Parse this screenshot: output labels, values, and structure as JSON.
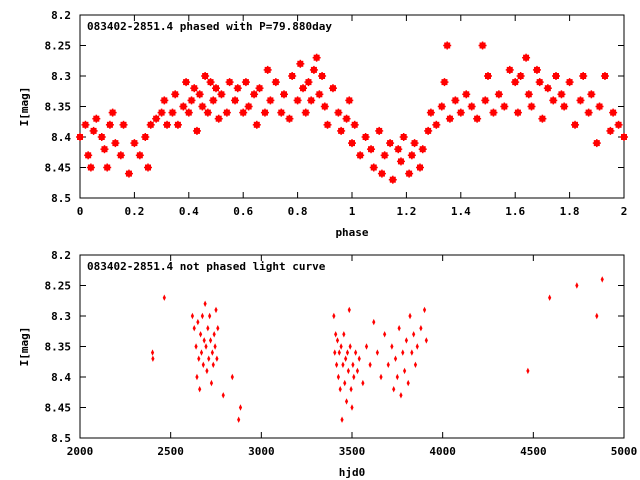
{
  "chart_data": [
    {
      "type": "scatter",
      "title": "083402-2851.4 phased with P=79.880day",
      "xlabel": "phase",
      "ylabel": "I[mag]",
      "xlim": [
        0,
        2
      ],
      "ylim": [
        8.2,
        8.5
      ],
      "y_inverted": true,
      "xticks": [
        0,
        0.2,
        0.4,
        0.6,
        0.8,
        1,
        1.2,
        1.4,
        1.6,
        1.8,
        2
      ],
      "xtick_labels": [
        "0",
        "0.2",
        "0.4",
        "0.6",
        "0.8",
        "1",
        "1.2",
        "1.4",
        "1.6",
        "1.8",
        "2"
      ],
      "yticks": [
        8.2,
        8.25,
        8.3,
        8.35,
        8.4,
        8.45,
        8.5
      ],
      "ytick_labels": [
        "8.2",
        "8.25",
        "8.3",
        "8.35",
        "8.4",
        "8.45",
        "8.5"
      ],
      "grid": false,
      "marker_color": "#ff0000",
      "series": [
        {
          "x": [
            0.0,
            0.02,
            0.03,
            0.04,
            0.05,
            0.06,
            0.08,
            0.09,
            0.1,
            0.11,
            0.12,
            0.13,
            0.15,
            0.16,
            0.18,
            0.2,
            0.22,
            0.24,
            0.25,
            0.26,
            0.28,
            0.3,
            0.31,
            0.32,
            0.34,
            0.35,
            0.36,
            0.38,
            0.39,
            0.4,
            0.41,
            0.42,
            0.43,
            0.44,
            0.45,
            0.46,
            0.47,
            0.48,
            0.49,
            0.5,
            0.51,
            0.52,
            0.54,
            0.55,
            0.57,
            0.58,
            0.6,
            0.61,
            0.62,
            0.64,
            0.65,
            0.66,
            0.68,
            0.69,
            0.7,
            0.72,
            0.74,
            0.75,
            0.77,
            0.78,
            0.8,
            0.81,
            0.82,
            0.83,
            0.84,
            0.85,
            0.86,
            0.87,
            0.88,
            0.89,
            0.9,
            0.91,
            0.93,
            0.95,
            0.96,
            0.98,
            0.99,
            1.0,
            1.01,
            1.03,
            1.05,
            1.07,
            1.08,
            1.1,
            1.11,
            1.12,
            1.14,
            1.15,
            1.17,
            1.18,
            1.19,
            1.21,
            1.22,
            1.23,
            1.25,
            1.26,
            1.28,
            1.29,
            1.31,
            1.33,
            1.34,
            1.35,
            1.36,
            1.38,
            1.4,
            1.42,
            1.44,
            1.46,
            1.48,
            1.49,
            1.5,
            1.52,
            1.54,
            1.56,
            1.58,
            1.6,
            1.61,
            1.62,
            1.64,
            1.65,
            1.66,
            1.68,
            1.69,
            1.7,
            1.72,
            1.74,
            1.75,
            1.77,
            1.78,
            1.8,
            1.82,
            1.84,
            1.85,
            1.87,
            1.88,
            1.9,
            1.91,
            1.93,
            1.95,
            1.96,
            1.98,
            2.0
          ],
          "y": [
            8.4,
            8.38,
            8.43,
            8.45,
            8.39,
            8.37,
            8.4,
            8.42,
            8.45,
            8.38,
            8.36,
            8.41,
            8.43,
            8.38,
            8.46,
            8.41,
            8.43,
            8.4,
            8.45,
            8.38,
            8.37,
            8.36,
            8.34,
            8.38,
            8.36,
            8.33,
            8.38,
            8.35,
            8.31,
            8.36,
            8.34,
            8.32,
            8.39,
            8.33,
            8.35,
            8.3,
            8.36,
            8.31,
            8.34,
            8.32,
            8.37,
            8.33,
            8.36,
            8.31,
            8.34,
            8.32,
            8.36,
            8.31,
            8.35,
            8.33,
            8.38,
            8.32,
            8.36,
            8.29,
            8.34,
            8.31,
            8.36,
            8.33,
            8.37,
            8.3,
            8.34,
            8.28,
            8.32,
            8.36,
            8.31,
            8.34,
            8.29,
            8.27,
            8.33,
            8.3,
            8.35,
            8.38,
            8.32,
            8.36,
            8.39,
            8.37,
            8.34,
            8.41,
            8.38,
            8.43,
            8.4,
            8.42,
            8.45,
            8.39,
            8.46,
            8.43,
            8.41,
            8.47,
            8.42,
            8.44,
            8.4,
            8.46,
            8.43,
            8.41,
            8.45,
            8.42,
            8.39,
            8.36,
            8.38,
            8.35,
            8.31,
            8.25,
            8.37,
            8.34,
            8.36,
            8.33,
            8.35,
            8.37,
            8.25,
            8.34,
            8.3,
            8.36,
            8.33,
            8.35,
            8.29,
            8.31,
            8.36,
            8.3,
            8.27,
            8.33,
            8.35,
            8.29,
            8.31,
            8.37,
            8.32,
            8.34,
            8.3,
            8.33,
            8.35,
            8.31,
            8.38,
            8.34,
            8.3,
            8.36,
            8.33,
            8.41,
            8.35,
            8.3,
            8.39,
            8.36,
            8.38,
            8.4
          ]
        }
      ]
    },
    {
      "type": "scatter",
      "title": "083402-2851.4 not phased light curve",
      "xlabel": "hjd0",
      "ylabel": "I[mag]",
      "xlim": [
        2000,
        5000
      ],
      "ylim": [
        8.2,
        8.5
      ],
      "y_inverted": true,
      "xticks": [
        2000,
        2500,
        3000,
        3500,
        4000,
        4500,
        5000
      ],
      "xtick_labels": [
        "2000",
        "2500",
        "3000",
        "3500",
        "4000",
        "4500",
        "5000"
      ],
      "yticks": [
        8.2,
        8.25,
        8.3,
        8.35,
        8.4,
        8.45,
        8.5
      ],
      "ytick_labels": [
        "8.2",
        "8.25",
        "8.3",
        "8.35",
        "8.4",
        "8.45",
        "8.5"
      ],
      "grid": false,
      "marker_color": "#ff0000",
      "series": [
        {
          "x": [
            2400,
            2402,
            2465,
            2620,
            2630,
            2640,
            2645,
            2650,
            2655,
            2660,
            2665,
            2670,
            2675,
            2680,
            2685,
            2690,
            2695,
            2700,
            2705,
            2710,
            2715,
            2720,
            2725,
            2730,
            2735,
            2740,
            2745,
            2750,
            2755,
            2760,
            2790,
            2840,
            2875,
            2885,
            3400,
            3405,
            3410,
            3415,
            3420,
            3425,
            3430,
            3435,
            3440,
            3445,
            3450,
            3455,
            3460,
            3465,
            3470,
            3475,
            3480,
            3485,
            3490,
            3495,
            3500,
            3505,
            3510,
            3520,
            3530,
            3540,
            3560,
            3580,
            3600,
            3620,
            3640,
            3660,
            3680,
            3700,
            3720,
            3730,
            3740,
            3750,
            3760,
            3770,
            3780,
            3790,
            3800,
            3810,
            3820,
            3830,
            3840,
            3850,
            3860,
            3880,
            3900,
            3910,
            4470,
            4590,
            4740,
            4850,
            4880
          ],
          "y": [
            8.36,
            8.37,
            8.27,
            8.3,
            8.32,
            8.35,
            8.4,
            8.31,
            8.37,
            8.42,
            8.33,
            8.36,
            8.3,
            8.38,
            8.34,
            8.28,
            8.35,
            8.39,
            8.32,
            8.37,
            8.3,
            8.34,
            8.41,
            8.36,
            8.38,
            8.33,
            8.35,
            8.29,
            8.37,
            8.32,
            8.43,
            8.4,
            8.47,
            8.45,
            8.3,
            8.36,
            8.33,
            8.38,
            8.34,
            8.4,
            8.36,
            8.42,
            8.35,
            8.47,
            8.38,
            8.33,
            8.41,
            8.37,
            8.44,
            8.36,
            8.39,
            8.29,
            8.35,
            8.42,
            8.45,
            8.38,
            8.4,
            8.36,
            8.39,
            8.37,
            8.41,
            8.35,
            8.38,
            8.31,
            8.36,
            8.4,
            8.33,
            8.38,
            8.35,
            8.42,
            8.37,
            8.4,
            8.32,
            8.43,
            8.36,
            8.39,
            8.34,
            8.41,
            8.3,
            8.36,
            8.33,
            8.38,
            8.35,
            8.32,
            8.29,
            8.34,
            8.39,
            8.27,
            8.25,
            8.3,
            8.24
          ]
        }
      ]
    }
  ]
}
